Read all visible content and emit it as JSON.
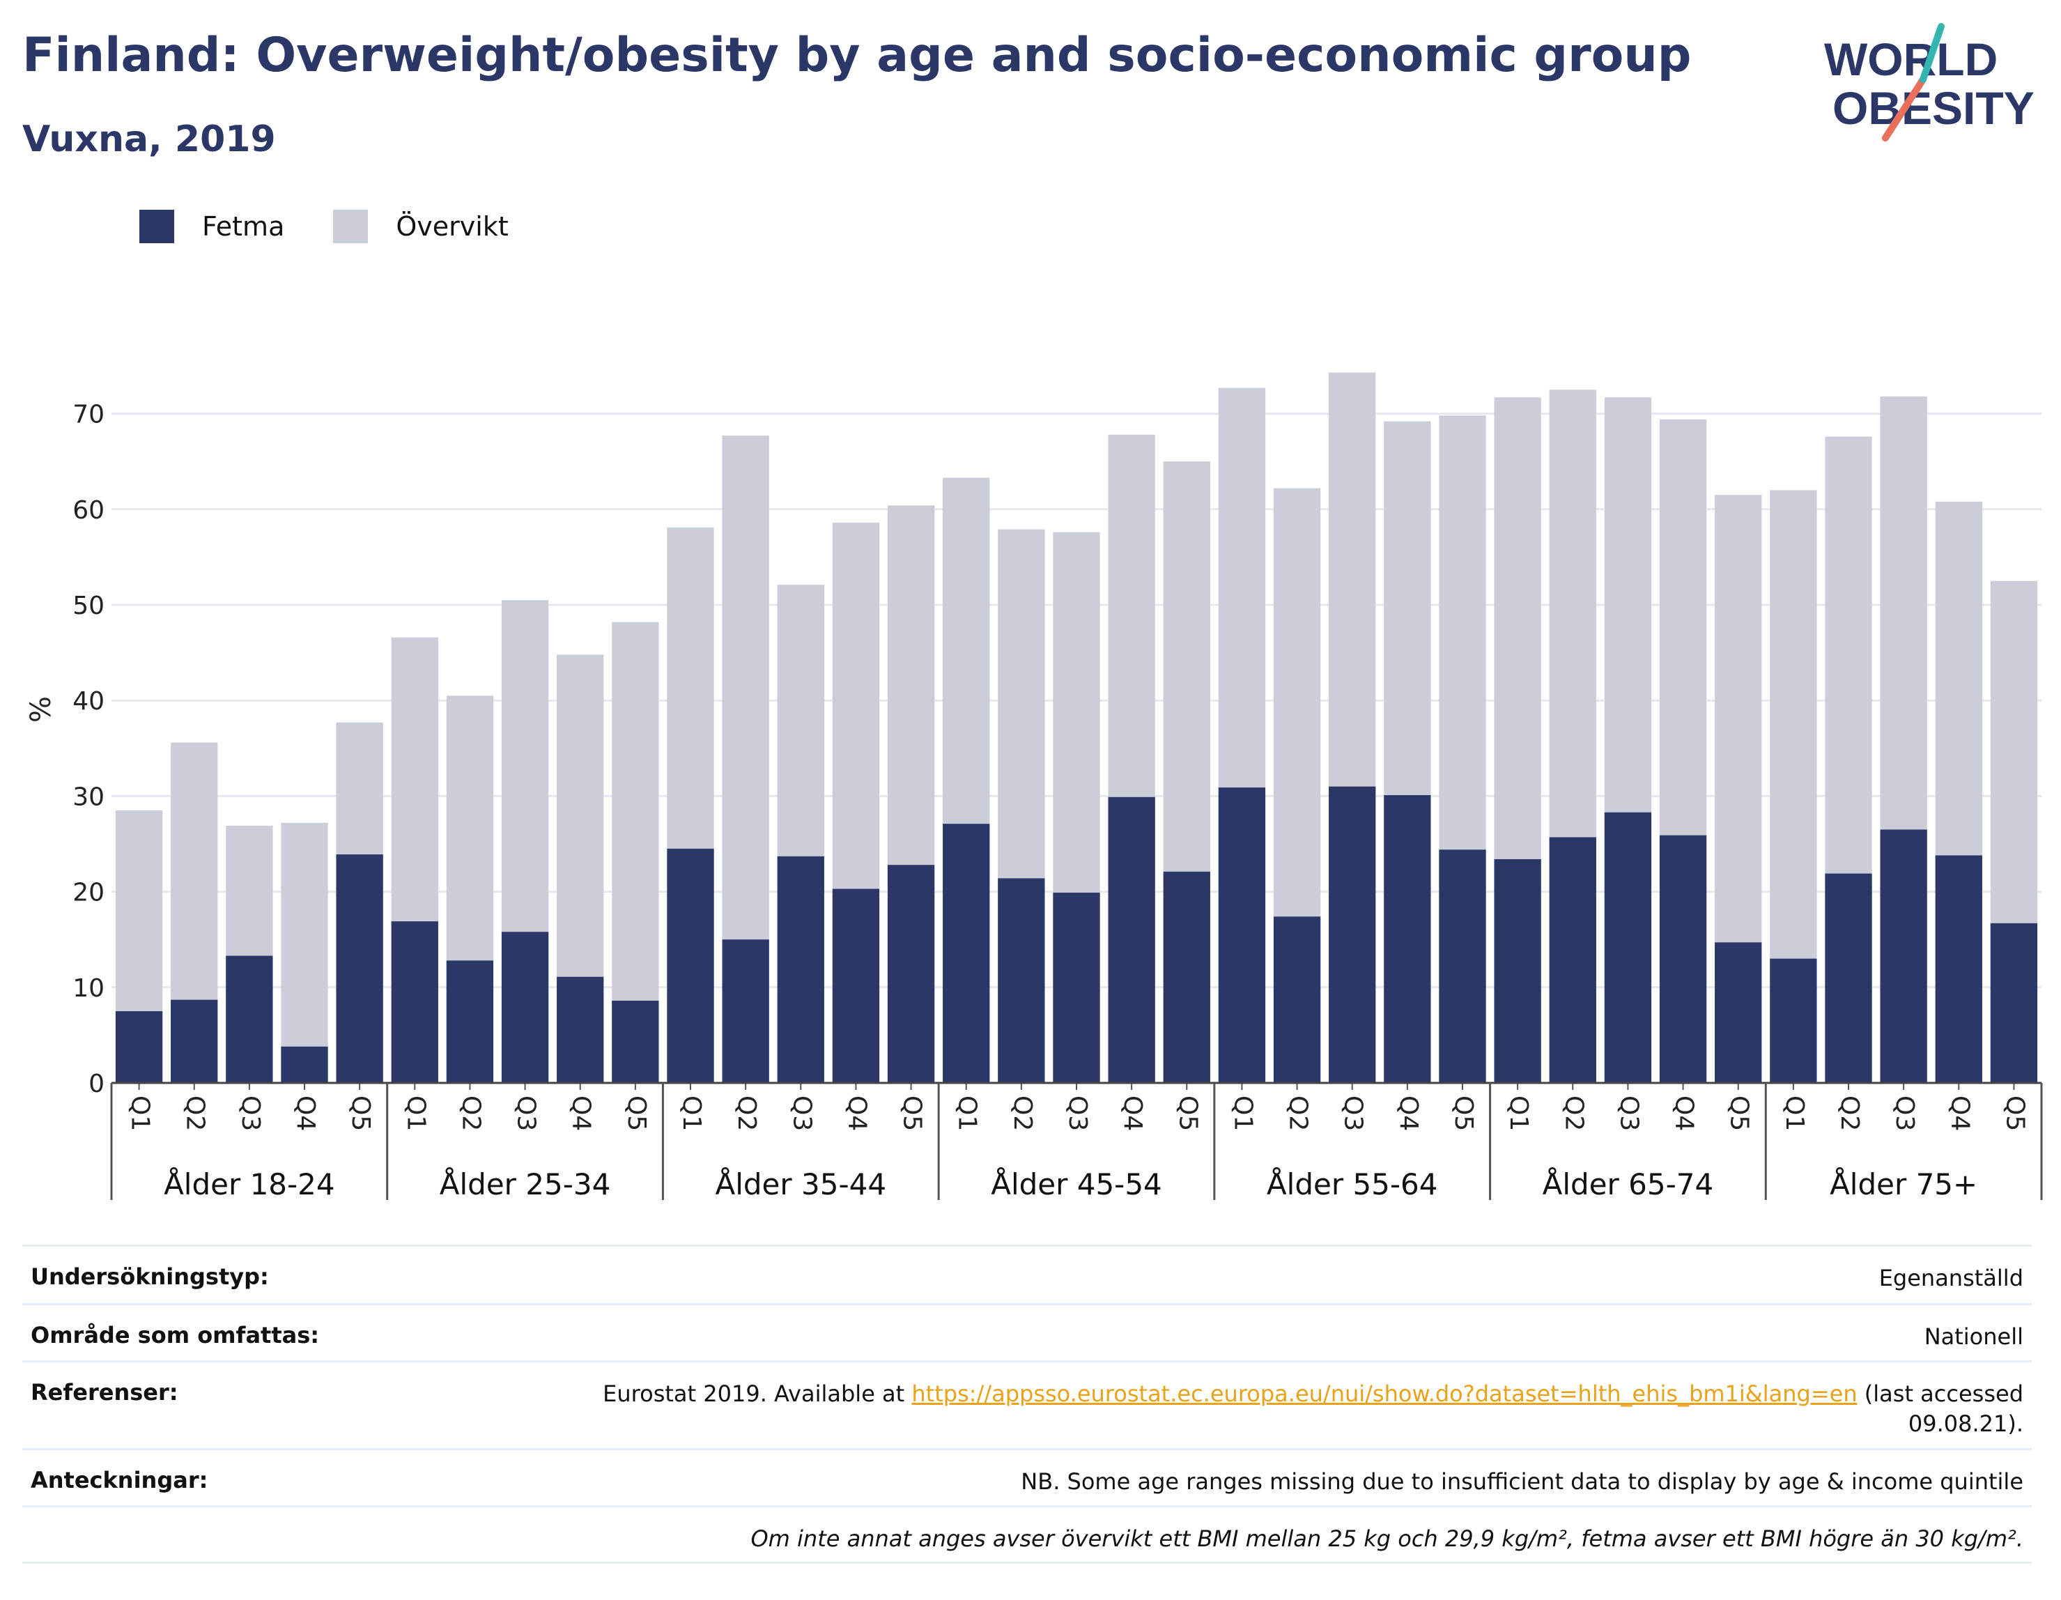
{
  "header": {
    "title": "Finland: Overweight/obesity by age and socio-economic group",
    "subtitle": "Vuxna, 2019"
  },
  "logo": {
    "line1": "WORLD",
    "line2": "OBESITY"
  },
  "colors": {
    "fetma": "#2b3766",
    "overvikt": "#cbcdd9",
    "title": "#2b3766",
    "link": "#e9a21a"
  },
  "legend": {
    "fetma": "Fetma",
    "overvikt": "Övervikt"
  },
  "chart_data": {
    "type": "bar",
    "stacked": false,
    "ylabel": "%",
    "ylim": [
      0,
      76
    ],
    "yticks": [
      0,
      10,
      20,
      30,
      40,
      50,
      60,
      70
    ],
    "grid": true,
    "legend_position": "top-left",
    "groups": [
      "Ålder 18-24",
      "Ålder 25-34",
      "Ålder 35-44",
      "Ålder 45-54",
      "Ålder 55-64",
      "Ålder 65-74",
      "Ålder 75+"
    ],
    "categories": [
      "Q1",
      "Q2",
      "Q3",
      "Q4",
      "Q5"
    ],
    "series": [
      {
        "name": "Övervikt",
        "values": [
          [
            28.5,
            35.6,
            26.9,
            27.2,
            37.7
          ],
          [
            46.6,
            40.5,
            50.5,
            44.8,
            48.2
          ],
          [
            58.1,
            67.7,
            52.1,
            58.6,
            60.4
          ],
          [
            63.3,
            57.9,
            57.6,
            67.8,
            65.0
          ],
          [
            72.7,
            62.2,
            74.3,
            69.2,
            69.8
          ],
          [
            71.7,
            72.5,
            71.7,
            69.4,
            61.5
          ],
          [
            62.0,
            67.6,
            71.8,
            60.8,
            52.5
          ]
        ]
      },
      {
        "name": "Fetma",
        "values": [
          [
            7.5,
            8.7,
            13.3,
            3.8,
            23.9
          ],
          [
            16.9,
            12.8,
            15.8,
            11.1,
            8.6
          ],
          [
            24.5,
            15.0,
            23.7,
            20.3,
            22.8
          ],
          [
            27.1,
            21.4,
            19.9,
            29.9,
            22.1
          ],
          [
            30.9,
            17.4,
            31.0,
            30.1,
            24.4
          ],
          [
            23.4,
            25.7,
            28.3,
            25.9,
            14.7
          ],
          [
            13.0,
            21.9,
            26.5,
            23.8,
            16.7
          ]
        ]
      }
    ]
  },
  "info": {
    "survey_label": "Undersökningstyp:",
    "survey_value": "Egenanställd",
    "area_label": "Område som omfattas:",
    "area_value": "Nationell",
    "ref_label": "Referenser:",
    "ref_prefix": "Eurostat 2019. Available at ",
    "ref_link": "https://appsso.eurostat.ec.europa.eu/nui/show.do?dataset=hlth_ehis_bm1i&lang=en",
    "ref_suffix_1": " (last accessed",
    "ref_suffix_2": "09.08.21).",
    "notes_label": "Anteckningar:",
    "notes_value": "NB. Some age ranges missing due to insufficient data to display by age & income quintile",
    "definition": "Om inte annat anges avser övervikt ett BMI mellan 25 kg och 29,9 kg/m², fetma avser ett BMI högre än 30 kg/m²."
  }
}
